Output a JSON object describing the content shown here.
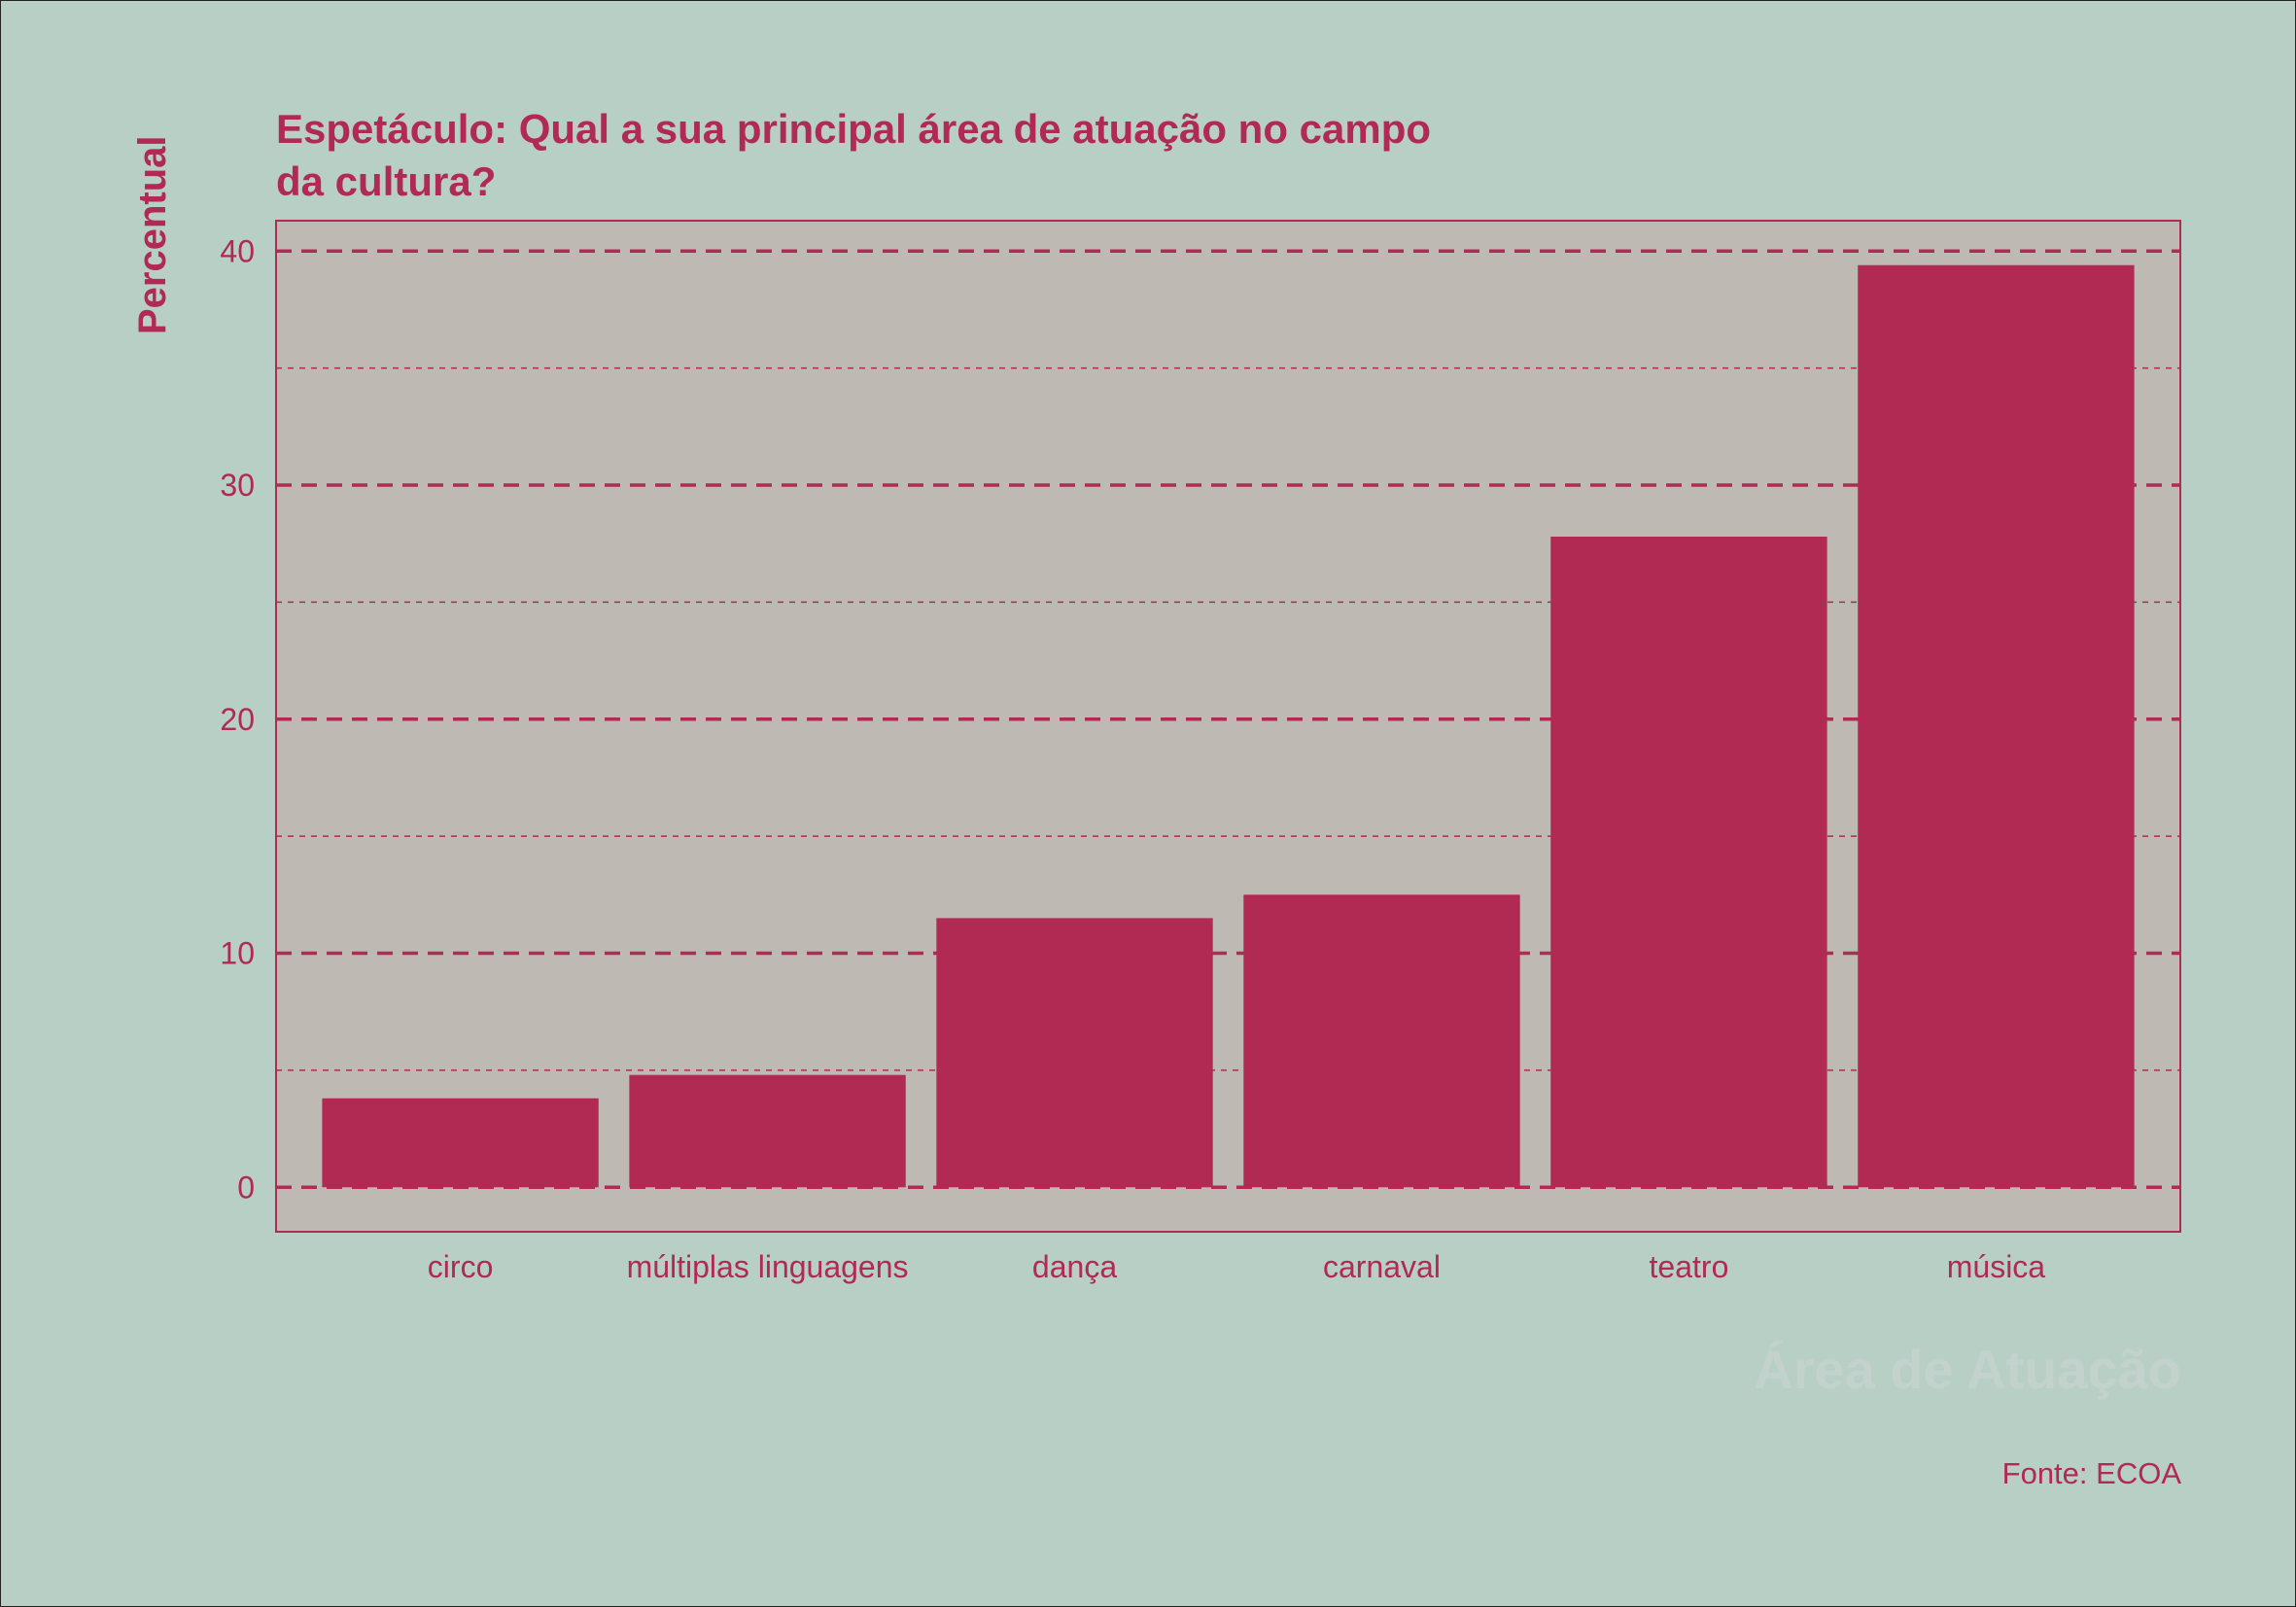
{
  "colors": {
    "page_background": "#b8cfc5",
    "panel_background": "#bfb9b3",
    "accent": "#b02a53",
    "xlabel_color": "#c3d2cd"
  },
  "chart_data": {
    "type": "bar",
    "title": "Espetáculo: Qual a sua principal área de atuação no campo\nda cultura?",
    "xlabel": "Área de Atuação",
    "ylabel": "Percentual",
    "caption": "Fonte: ECOA",
    "categories": [
      "circo",
      "múltiplas linguagens",
      "dança",
      "carnaval",
      "teatro",
      "música"
    ],
    "values": [
      3.8,
      4.8,
      11.5,
      12.5,
      27.8,
      39.4
    ],
    "ylim": [
      -1.9,
      41.3
    ],
    "yticks": [
      0,
      10,
      20,
      30,
      40
    ],
    "yticks_minor": [
      5,
      15,
      25,
      35
    ],
    "grid": true,
    "legend": "none"
  }
}
